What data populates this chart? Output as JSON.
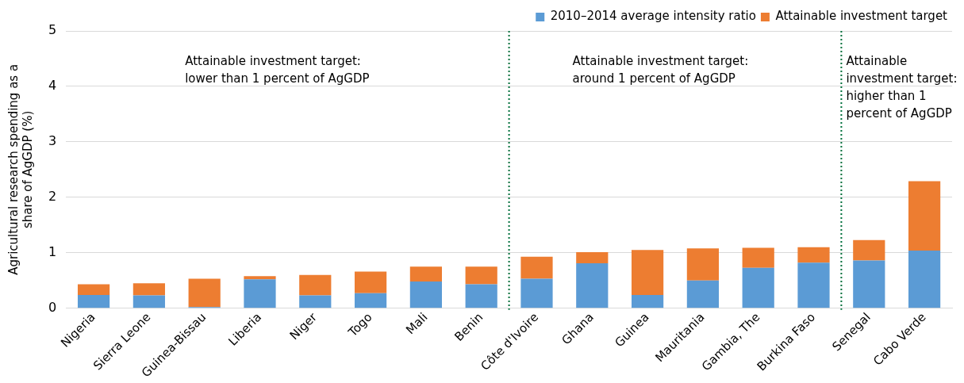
{
  "chart_data": {
    "type": "bar",
    "stacked": true,
    "ylabel": "Agricultural research spending as a share of AgGDP (%)",
    "categories": [
      "Nigeria",
      "Sierra Leone",
      "Guinea-Bissau",
      "Liberia",
      "Niger",
      "Togo",
      "Mali",
      "Benin",
      "Côte d'Ivoire",
      "Ghana",
      "Guinea",
      "Mauritania",
      "Gambia, The",
      "Burkina Faso",
      "Senegal",
      "Cabo Verde"
    ],
    "series": [
      {
        "name": "2010–2014 average intensity ratio",
        "color": "#5b9bd5",
        "values": [
          0.24,
          0.23,
          0.02,
          0.52,
          0.23,
          0.27,
          0.48,
          0.43,
          0.53,
          0.81,
          0.24,
          0.5,
          0.73,
          0.82,
          0.86,
          1.04
        ]
      },
      {
        "name": "Attainable investment target",
        "color": "#ed7d31",
        "values": [
          0.19,
          0.22,
          0.51,
          0.06,
          0.37,
          0.39,
          0.27,
          0.32,
          0.4,
          0.2,
          0.81,
          0.58,
          0.36,
          0.28,
          0.37,
          1.25
        ]
      }
    ],
    "ylim": [
      0,
      5
    ],
    "yticks": [
      0,
      1,
      2,
      3,
      4,
      5
    ],
    "grid": "y",
    "legend": "top right",
    "annotations": [
      "Attainable investment target: lower than 1 percent of AgGDP",
      "Attainable investment target: around 1 percent of AgGDP",
      "Attainable investment target: higher than 1 percent of AgGDP"
    ]
  }
}
